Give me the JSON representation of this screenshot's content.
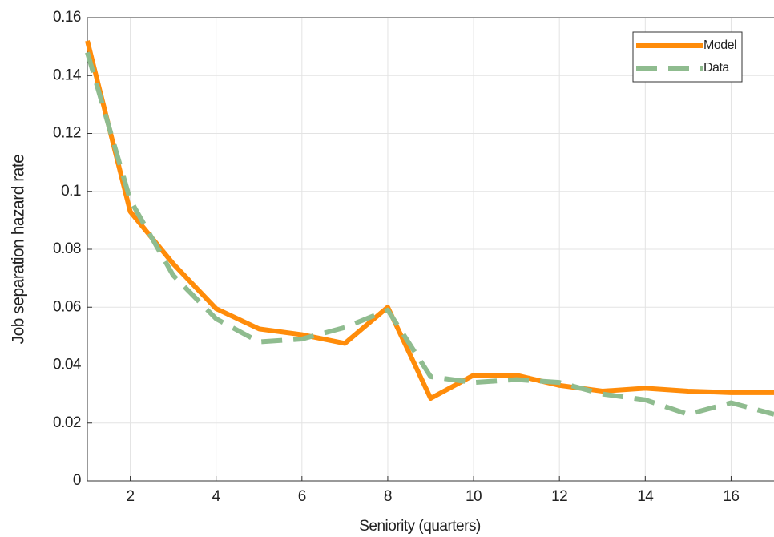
{
  "chart_data": {
    "type": "line",
    "x_label": "Seniority (quarters)",
    "y_label": "Job separation hazard rate",
    "x": [
      1,
      2,
      3,
      4,
      5,
      6,
      7,
      8,
      9,
      10,
      11,
      12,
      13,
      14,
      15,
      16,
      17
    ],
    "series": [
      {
        "name": "Model",
        "color": "#ff8c0a",
        "dash": false,
        "values": [
          0.152,
          0.093,
          0.075,
          0.0595,
          0.0525,
          0.0505,
          0.0475,
          0.06,
          0.0285,
          0.0365,
          0.0365,
          0.033,
          0.031,
          0.032,
          0.031,
          0.0305,
          0.0305
        ]
      },
      {
        "name": "Data",
        "color": "#8fbc8f",
        "dash": true,
        "values": [
          0.148,
          0.097,
          0.071,
          0.056,
          0.048,
          0.049,
          0.053,
          0.059,
          0.036,
          0.034,
          0.035,
          0.034,
          0.03,
          0.028,
          0.023,
          0.027,
          0.023
        ]
      }
    ],
    "xlim": [
      1,
      17
    ],
    "xticks": [
      2,
      4,
      6,
      8,
      10,
      12,
      14,
      16
    ],
    "ylim": [
      0,
      0.16
    ],
    "yticks": [
      0,
      0.02,
      0.04,
      0.06,
      0.08,
      0.1,
      0.12,
      0.14,
      0.16
    ],
    "grid": true,
    "legend": "upper right"
  }
}
